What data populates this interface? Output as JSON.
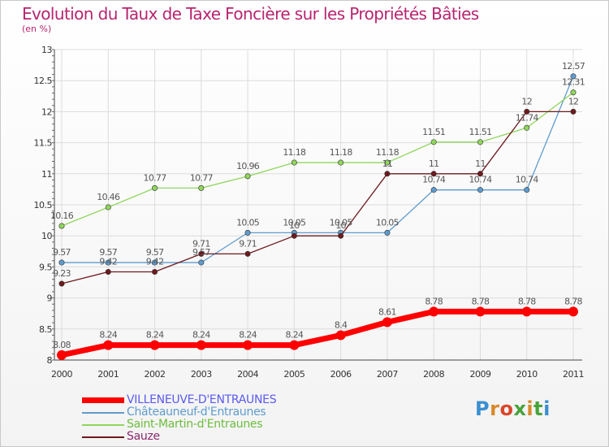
{
  "chart_data": {
    "type": "line",
    "title": "Evolution du Taux de Taxe Foncière sur les Propriétés Bâties",
    "subtitle": "(en %)",
    "xlabel": "",
    "ylabel": "",
    "x": [
      "2000",
      "2001",
      "2002",
      "2003",
      "2004",
      "2005",
      "2006",
      "2007",
      "2008",
      "2009",
      "2010",
      "2011"
    ],
    "ylim": [
      8,
      13
    ],
    "yticks": [
      "8",
      "8.5",
      "9",
      "9.5",
      "10",
      "10.5",
      "11",
      "11.5",
      "12",
      "12.5",
      "13"
    ],
    "grid": true,
    "legend_position": "bottom-left",
    "series": [
      {
        "name": "VILLENEUVE-D'ENTRAUNES",
        "color": "#ff0000",
        "values": [
          8.08,
          8.24,
          8.24,
          8.24,
          8.24,
          8.24,
          8.4,
          8.61,
          8.78,
          8.78,
          8.78,
          8.78
        ],
        "labels": [
          "8.08",
          "8.24",
          "8.24",
          "8.24",
          "8.24",
          "8.24",
          "8.4",
          "8.61",
          "8.78",
          "8.78",
          "8.78",
          "8.78"
        ]
      },
      {
        "name": "Châteauneuf-d'Entraunes",
        "color": "#5e9ccf",
        "values": [
          9.57,
          9.57,
          9.57,
          9.57,
          10.05,
          10.05,
          10.05,
          10.05,
          10.74,
          10.74,
          10.74,
          12.57
        ],
        "labels": [
          "9.57",
          "9.57",
          "9.57",
          "9.57",
          "10.05",
          "10.05",
          "10.05",
          "10.05",
          "10.74",
          "10.74",
          "10.74",
          "12.57"
        ]
      },
      {
        "name": "Saint-Martin-d'Entraunes",
        "color": "#8fd65c",
        "values": [
          10.16,
          10.46,
          10.77,
          10.77,
          10.96,
          11.18,
          11.18,
          11.18,
          11.51,
          11.51,
          11.74,
          12.31
        ],
        "labels": [
          "10.16",
          "10.46",
          "10.77",
          "10.77",
          "10.96",
          "11.18",
          "11.18",
          "11.18",
          "11.51",
          "11.51",
          "11.74",
          "12.31"
        ]
      },
      {
        "name": "Sauze",
        "color": "#6e1a1e",
        "values": [
          9.23,
          9.42,
          9.42,
          9.71,
          9.71,
          10,
          10,
          11,
          11,
          11,
          12,
          12
        ],
        "labels": [
          "9.23",
          "9.42",
          "9.42",
          "9.71",
          "9.71",
          "10",
          "10",
          "11",
          "11",
          "11",
          "12",
          "12"
        ]
      }
    ]
  },
  "legend": {
    "items": [
      {
        "label": "VILLENEUVE-D'ENTRAUNES",
        "text_color": "#5b5bef"
      },
      {
        "label": "Châteauneuf-d'Entraunes",
        "text_color": "#5e9ccf"
      },
      {
        "label": "Saint-Martin-d'Entraunes",
        "text_color": "#6dbd3c"
      },
      {
        "label": "Sauze",
        "text_color": "#8b2a6e"
      }
    ]
  },
  "logo": {
    "text": "Proxiti"
  }
}
